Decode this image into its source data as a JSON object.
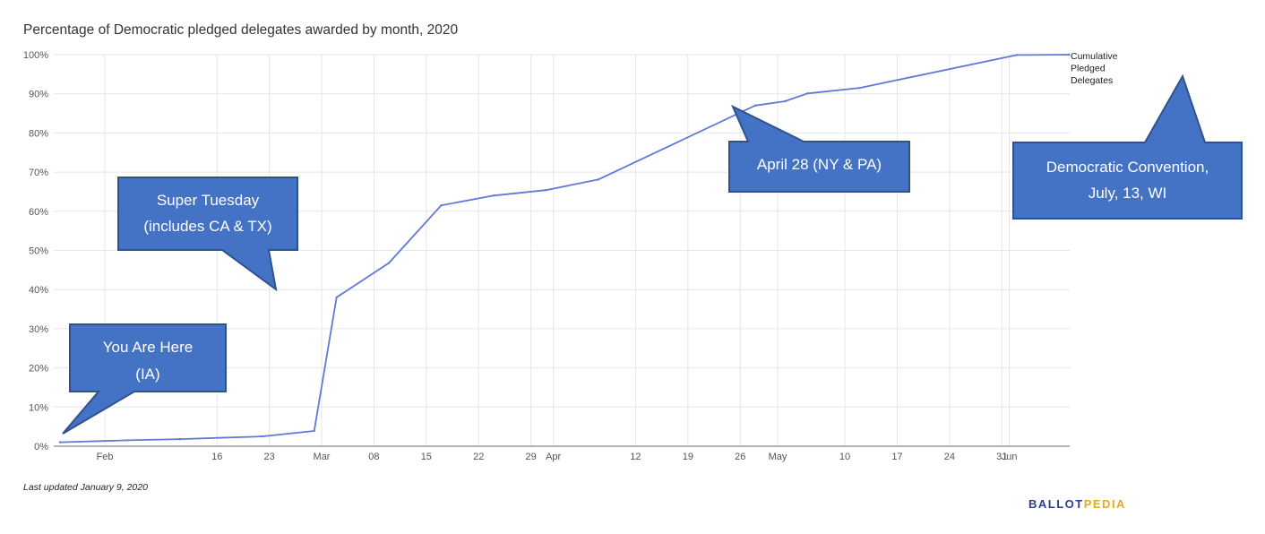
{
  "chart_data": {
    "type": "line",
    "title": "Percentage of Democratic pledged delegates awarded by month, 2020",
    "xlabel": "",
    "ylabel": "",
    "y_ticks": [
      "0%",
      "10%",
      "20%",
      "30%",
      "40%",
      "50%",
      "60%",
      "70%",
      "80%",
      "90%",
      "100%"
    ],
    "ylim": [
      0,
      100
    ],
    "x_ticks": [
      "Feb",
      "16",
      "23",
      "Mar",
      "08",
      "15",
      "22",
      "29",
      "Apr",
      "12",
      "19",
      "26",
      "May",
      "10",
      "17",
      "24",
      "31",
      "Jun"
    ],
    "x_tick_dates": [
      "2020-02-01",
      "2020-02-16",
      "2020-02-23",
      "2020-03-01",
      "2020-03-08",
      "2020-03-15",
      "2020-03-22",
      "2020-03-29",
      "2020-04-01",
      "2020-04-12",
      "2020-04-19",
      "2020-04-26",
      "2020-05-01",
      "2020-05-10",
      "2020-05-17",
      "2020-05-24",
      "2020-05-31",
      "2020-06-01"
    ],
    "xlim": [
      "2020-01-26",
      "2020-06-08"
    ],
    "grid": true,
    "legend": "right",
    "series": [
      {
        "name": "Cumulative Pledged Delegates",
        "color": "#6079d6",
        "points": [
          {
            "x": "2020-01-26",
            "y": 1
          },
          {
            "x": "2020-02-04",
            "y": 1.5
          },
          {
            "x": "2020-02-11",
            "y": 1.8
          },
          {
            "x": "2020-02-22",
            "y": 2.5
          },
          {
            "x": "2020-02-29",
            "y": 3.9
          },
          {
            "x": "2020-03-03",
            "y": 38
          },
          {
            "x": "2020-03-10",
            "y": 46.8
          },
          {
            "x": "2020-03-17",
            "y": 61.5
          },
          {
            "x": "2020-03-24",
            "y": 64
          },
          {
            "x": "2020-03-31",
            "y": 65.4
          },
          {
            "x": "2020-04-07",
            "y": 68.1
          },
          {
            "x": "2020-04-28",
            "y": 87
          },
          {
            "x": "2020-05-02",
            "y": 88.1
          },
          {
            "x": "2020-05-05",
            "y": 90.1
          },
          {
            "x": "2020-05-12",
            "y": 91.5
          },
          {
            "x": "2020-06-02",
            "y": 99.9
          },
          {
            "x": "2020-06-09",
            "y": 100
          }
        ]
      }
    ],
    "annotations": [
      {
        "lines": [
          "You Are Here",
          "(IA)"
        ]
      },
      {
        "lines": [
          "Super Tuesday",
          "(includes CA & TX)"
        ]
      },
      {
        "lines": [
          "April 28 (NY & PA)"
        ]
      },
      {
        "lines": [
          "Democratic Convention,",
          "July, 13, WI"
        ]
      }
    ]
  },
  "footer": {
    "note": "Last updated January 9, 2020"
  },
  "brand": {
    "part1": "BALLOT",
    "part2": "PEDIA",
    "color1": "#2b3f8e",
    "color2": "#e7a823"
  }
}
